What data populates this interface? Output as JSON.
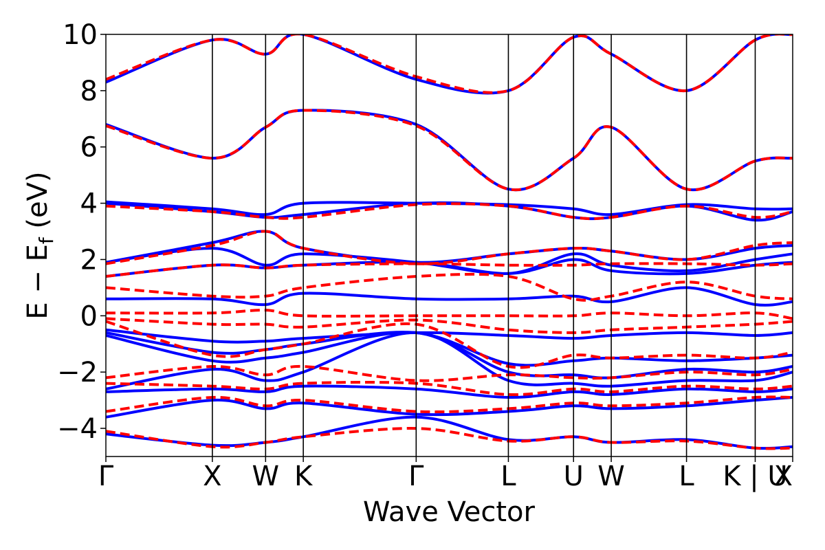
{
  "chart_data": {
    "type": "line",
    "title": "",
    "xlabel": "Wave Vector",
    "ylabel_parts": {
      "main": "E − E",
      "sub": "f",
      "unit": " (eV)"
    },
    "ylim": [
      -5,
      10
    ],
    "yticks": [
      -4,
      -2,
      0,
      2,
      4,
      6,
      8,
      10
    ],
    "ytick_labels": [
      "−4",
      "−2",
      "0",
      "2",
      "4",
      "6",
      "8",
      "10"
    ],
    "x_range": [
      0,
      6.45
    ],
    "kpoints": [
      {
        "label": "Γ",
        "x": 0.0
      },
      {
        "label": "X",
        "x": 1.0
      },
      {
        "label": "W",
        "x": 1.5
      },
      {
        "label": "K",
        "x": 1.854
      },
      {
        "label": "Γ",
        "x": 2.914
      },
      {
        "label": "L",
        "x": 3.78
      },
      {
        "label": "U",
        "x": 4.392
      },
      {
        "label": "W",
        "x": 4.746
      },
      {
        "label": "L",
        "x": 5.453
      },
      {
        "label": "K | U",
        "x": 6.098
      },
      {
        "label": "X",
        "x": 6.45
      }
    ],
    "grid": false,
    "legend": "none",
    "series_styles": [
      {
        "color": "#0000ff",
        "style": "solid"
      },
      {
        "color": "#ff0000",
        "style": "dashed"
      }
    ],
    "series": [
      {
        "style_index": 0,
        "bands": [
          {
            "x": [
              0,
              1.0,
              1.5,
              1.854,
              2.914,
              3.78,
              4.392,
              4.746,
              5.453,
              6.098,
              6.45
            ],
            "y": [
              -4.2,
              -4.6,
              -4.5,
              -4.3,
              -3.6,
              -4.4,
              -4.3,
              -4.5,
              -4.4,
              -4.7,
              -4.65
            ]
          },
          {
            "x": [
              0,
              1.0,
              1.5,
              1.854,
              2.914,
              3.78,
              4.392,
              4.746,
              5.453,
              6.098,
              6.45
            ],
            "y": [
              -3.6,
              -3.0,
              -3.3,
              -3.1,
              -3.5,
              -3.4,
              -3.2,
              -3.3,
              -3.2,
              -3.0,
              -2.9
            ]
          },
          {
            "x": [
              0,
              1.0,
              1.5,
              1.854,
              2.914,
              3.78,
              4.392,
              4.746,
              5.453,
              6.098,
              6.45
            ],
            "y": [
              -2.7,
              -2.6,
              -2.7,
              -2.5,
              -2.6,
              -2.9,
              -2.7,
              -2.8,
              -2.6,
              -2.7,
              -2.6
            ]
          },
          {
            "x": [
              0,
              1.0,
              1.5,
              1.854,
              2.914,
              3.78,
              4.392,
              4.746,
              5.453,
              6.098,
              6.45
            ],
            "y": [
              -2.6,
              -1.9,
              -2.3,
              -2.0,
              -0.6,
              -2.3,
              -2.4,
              -2.5,
              -2.3,
              -2.3,
              -2.0
            ]
          },
          {
            "x": [
              0,
              1.0,
              1.5,
              1.854,
              2.914,
              3.78,
              4.392,
              4.746,
              5.453,
              6.098,
              6.45
            ],
            "y": [
              -0.7,
              -1.6,
              -1.5,
              -1.3,
              -0.6,
              -2.0,
              -2.1,
              -2.2,
              -1.9,
              -2.0,
              -1.8
            ]
          },
          {
            "x": [
              0,
              1.0,
              1.5,
              1.854,
              2.914,
              3.78,
              4.392,
              4.746,
              5.453,
              6.098,
              6.45
            ],
            "y": [
              -0.6,
              -1.3,
              -1.2,
              -1.0,
              -0.6,
              -1.7,
              -1.6,
              -1.5,
              -1.6,
              -1.5,
              -1.4
            ]
          },
          {
            "x": [
              0,
              1.0,
              1.5,
              1.854,
              2.914,
              3.78,
              4.392,
              4.746,
              5.453,
              6.098,
              6.45
            ],
            "y": [
              -0.5,
              -0.9,
              -0.9,
              -0.8,
              -0.6,
              -0.7,
              -0.8,
              -0.7,
              -0.6,
              -0.7,
              -0.6
            ]
          },
          {
            "x": [
              0,
              1.0,
              1.5,
              1.854,
              2.914,
              3.78,
              4.392,
              4.746,
              5.453,
              6.098,
              6.45
            ],
            "y": [
              0.6,
              0.6,
              0.4,
              0.8,
              0.6,
              0.6,
              0.7,
              0.5,
              1.0,
              0.4,
              0.5
            ]
          },
          {
            "x": [
              0,
              1.0,
              1.5,
              1.854,
              2.914,
              3.78,
              4.392,
              4.746,
              5.453,
              6.098,
              6.45
            ],
            "y": [
              1.4,
              1.8,
              1.7,
              1.8,
              1.9,
              1.5,
              2.0,
              1.6,
              1.5,
              1.8,
              1.9
            ]
          },
          {
            "x": [
              0,
              1.0,
              1.5,
              1.854,
              2.914,
              3.78,
              4.392,
              4.746,
              5.453,
              6.098,
              6.45
            ],
            "y": [
              1.9,
              2.4,
              1.8,
              2.2,
              1.9,
              1.5,
              2.2,
              1.8,
              1.6,
              2.0,
              2.2
            ]
          },
          {
            "x": [
              0,
              1.0,
              1.5,
              1.854,
              2.914,
              3.78,
              4.392,
              4.746,
              5.453,
              6.098,
              6.45
            ],
            "y": [
              1.9,
              2.6,
              3.0,
              2.4,
              1.9,
              2.2,
              2.4,
              2.3,
              2.0,
              2.4,
              2.5
            ]
          },
          {
            "x": [
              0,
              1.0,
              1.5,
              1.854,
              2.914,
              3.78,
              4.392,
              4.746,
              5.453,
              6.098,
              6.45
            ],
            "y": [
              4.0,
              3.7,
              3.5,
              3.6,
              4.0,
              3.9,
              3.5,
              3.5,
              3.9,
              3.4,
              3.7
            ]
          },
          {
            "x": [
              0,
              1.0,
              1.5,
              1.854,
              2.914,
              3.78,
              4.392,
              4.746,
              5.453,
              6.098,
              6.45
            ],
            "y": [
              4.05,
              3.8,
              3.6,
              4.0,
              4.0,
              3.95,
              3.8,
              3.6,
              3.95,
              3.8,
              3.8
            ]
          },
          {
            "x": [
              0,
              1.0,
              1.5,
              1.854,
              2.914,
              3.78,
              4.392,
              4.746,
              5.453,
              6.098,
              6.45
            ],
            "y": [
              6.8,
              5.6,
              6.7,
              7.3,
              6.8,
              4.5,
              5.6,
              6.7,
              4.5,
              5.5,
              5.6
            ]
          },
          {
            "x": [
              0,
              1.0,
              1.5,
              1.854,
              2.914,
              3.78,
              4.392,
              4.746,
              5.453,
              6.098,
              6.45
            ],
            "y": [
              8.3,
              9.8,
              9.3,
              10.0,
              8.4,
              8.0,
              9.9,
              9.3,
              8.0,
              9.8,
              10.0
            ]
          }
        ]
      },
      {
        "style_index": 1,
        "bands": [
          {
            "x": [
              0,
              1.0,
              1.5,
              1.854,
              2.914,
              3.78,
              4.392,
              4.746,
              5.453,
              6.098,
              6.45
            ],
            "y": [
              -4.1,
              -4.65,
              -4.5,
              -4.3,
              -4.0,
              -4.45,
              -4.3,
              -4.5,
              -4.45,
              -4.7,
              -4.7
            ]
          },
          {
            "x": [
              0,
              1.0,
              1.5,
              1.854,
              2.914,
              3.78,
              4.392,
              4.746,
              5.453,
              6.098,
              6.45
            ],
            "y": [
              -3.4,
              -2.9,
              -3.2,
              -3.0,
              -3.4,
              -3.3,
              -3.1,
              -3.2,
              -3.1,
              -2.9,
              -2.9
            ]
          },
          {
            "x": [
              0,
              1.0,
              1.5,
              1.854,
              2.914,
              3.78,
              4.392,
              4.746,
              5.453,
              6.098,
              6.45
            ],
            "y": [
              -2.4,
              -2.5,
              -2.6,
              -2.4,
              -2.4,
              -2.8,
              -2.6,
              -2.7,
              -2.5,
              -2.6,
              -2.5
            ]
          },
          {
            "x": [
              0,
              1.0,
              1.5,
              1.854,
              2.914,
              3.78,
              4.392,
              4.746,
              5.453,
              6.098,
              6.45
            ],
            "y": [
              -2.2,
              -1.8,
              -2.1,
              -1.8,
              -2.3,
              -2.1,
              -2.2,
              -2.2,
              -2.0,
              -2.1,
              -1.9
            ]
          },
          {
            "x": [
              0,
              1.0,
              1.5,
              1.854,
              2.914,
              3.78,
              4.392,
              4.746,
              5.453,
              6.098,
              6.45
            ],
            "y": [
              -0.2,
              -1.4,
              -1.2,
              -1.0,
              -0.3,
              -1.8,
              -1.4,
              -1.5,
              -1.4,
              -1.5,
              -1.3
            ]
          },
          {
            "x": [
              0,
              1.0,
              1.5,
              1.854,
              2.914,
              3.78,
              4.392,
              4.746,
              5.453,
              6.098,
              6.45
            ],
            "y": [
              -0.1,
              -0.3,
              -0.3,
              -0.4,
              -0.15,
              -0.5,
              -0.6,
              -0.5,
              -0.4,
              -0.3,
              -0.2
            ]
          },
          {
            "x": [
              0,
              1.0,
              1.5,
              1.854,
              2.914,
              3.78,
              4.392,
              4.746,
              5.453,
              6.098,
              6.45
            ],
            "y": [
              0.1,
              0.1,
              0.2,
              0.0,
              0.0,
              0.0,
              0.0,
              0.1,
              0.0,
              0.1,
              -0.1
            ]
          },
          {
            "x": [
              0,
              1.0,
              1.5,
              1.854,
              2.914,
              3.78,
              4.392,
              4.746,
              5.453,
              6.098,
              6.45
            ],
            "y": [
              1.0,
              0.7,
              0.7,
              1.0,
              1.4,
              1.4,
              0.6,
              0.7,
              1.2,
              0.7,
              0.6
            ]
          },
          {
            "x": [
              0,
              1.0,
              1.5,
              1.854,
              2.914,
              3.78,
              4.392,
              4.746,
              5.453,
              6.098,
              6.45
            ],
            "y": [
              1.4,
              1.8,
              1.7,
              1.8,
              1.85,
              1.8,
              1.8,
              1.85,
              1.85,
              1.8,
              1.85
            ]
          },
          {
            "x": [
              0,
              1.0,
              1.5,
              1.854,
              2.914,
              3.78,
              4.392,
              4.746,
              5.453,
              6.098,
              6.45
            ],
            "y": [
              1.85,
              2.5,
              3.0,
              2.4,
              1.85,
              2.2,
              2.4,
              2.3,
              2.0,
              2.5,
              2.6
            ]
          },
          {
            "x": [
              0,
              1.0,
              1.5,
              1.854,
              2.914,
              3.78,
              4.392,
              4.746,
              5.453,
              6.098,
              6.45
            ],
            "y": [
              3.9,
              3.7,
              3.5,
              3.5,
              3.95,
              3.9,
              3.5,
              3.5,
              3.9,
              3.5,
              3.7
            ]
          },
          {
            "x": [
              0,
              1.0,
              1.5,
              1.854,
              2.914,
              3.78,
              4.392,
              4.746,
              5.453,
              6.098,
              6.45
            ],
            "y": [
              6.75,
              5.6,
              6.7,
              7.3,
              6.75,
              4.5,
              5.6,
              6.7,
              4.5,
              5.5,
              5.6
            ]
          },
          {
            "x": [
              0,
              1.0,
              1.5,
              1.854,
              2.914,
              3.78,
              4.392,
              4.746,
              5.453,
              6.098,
              6.45
            ],
            "y": [
              8.4,
              9.8,
              9.3,
              10.0,
              8.5,
              8.0,
              9.9,
              9.3,
              8.0,
              9.8,
              10.0
            ]
          }
        ]
      }
    ]
  }
}
